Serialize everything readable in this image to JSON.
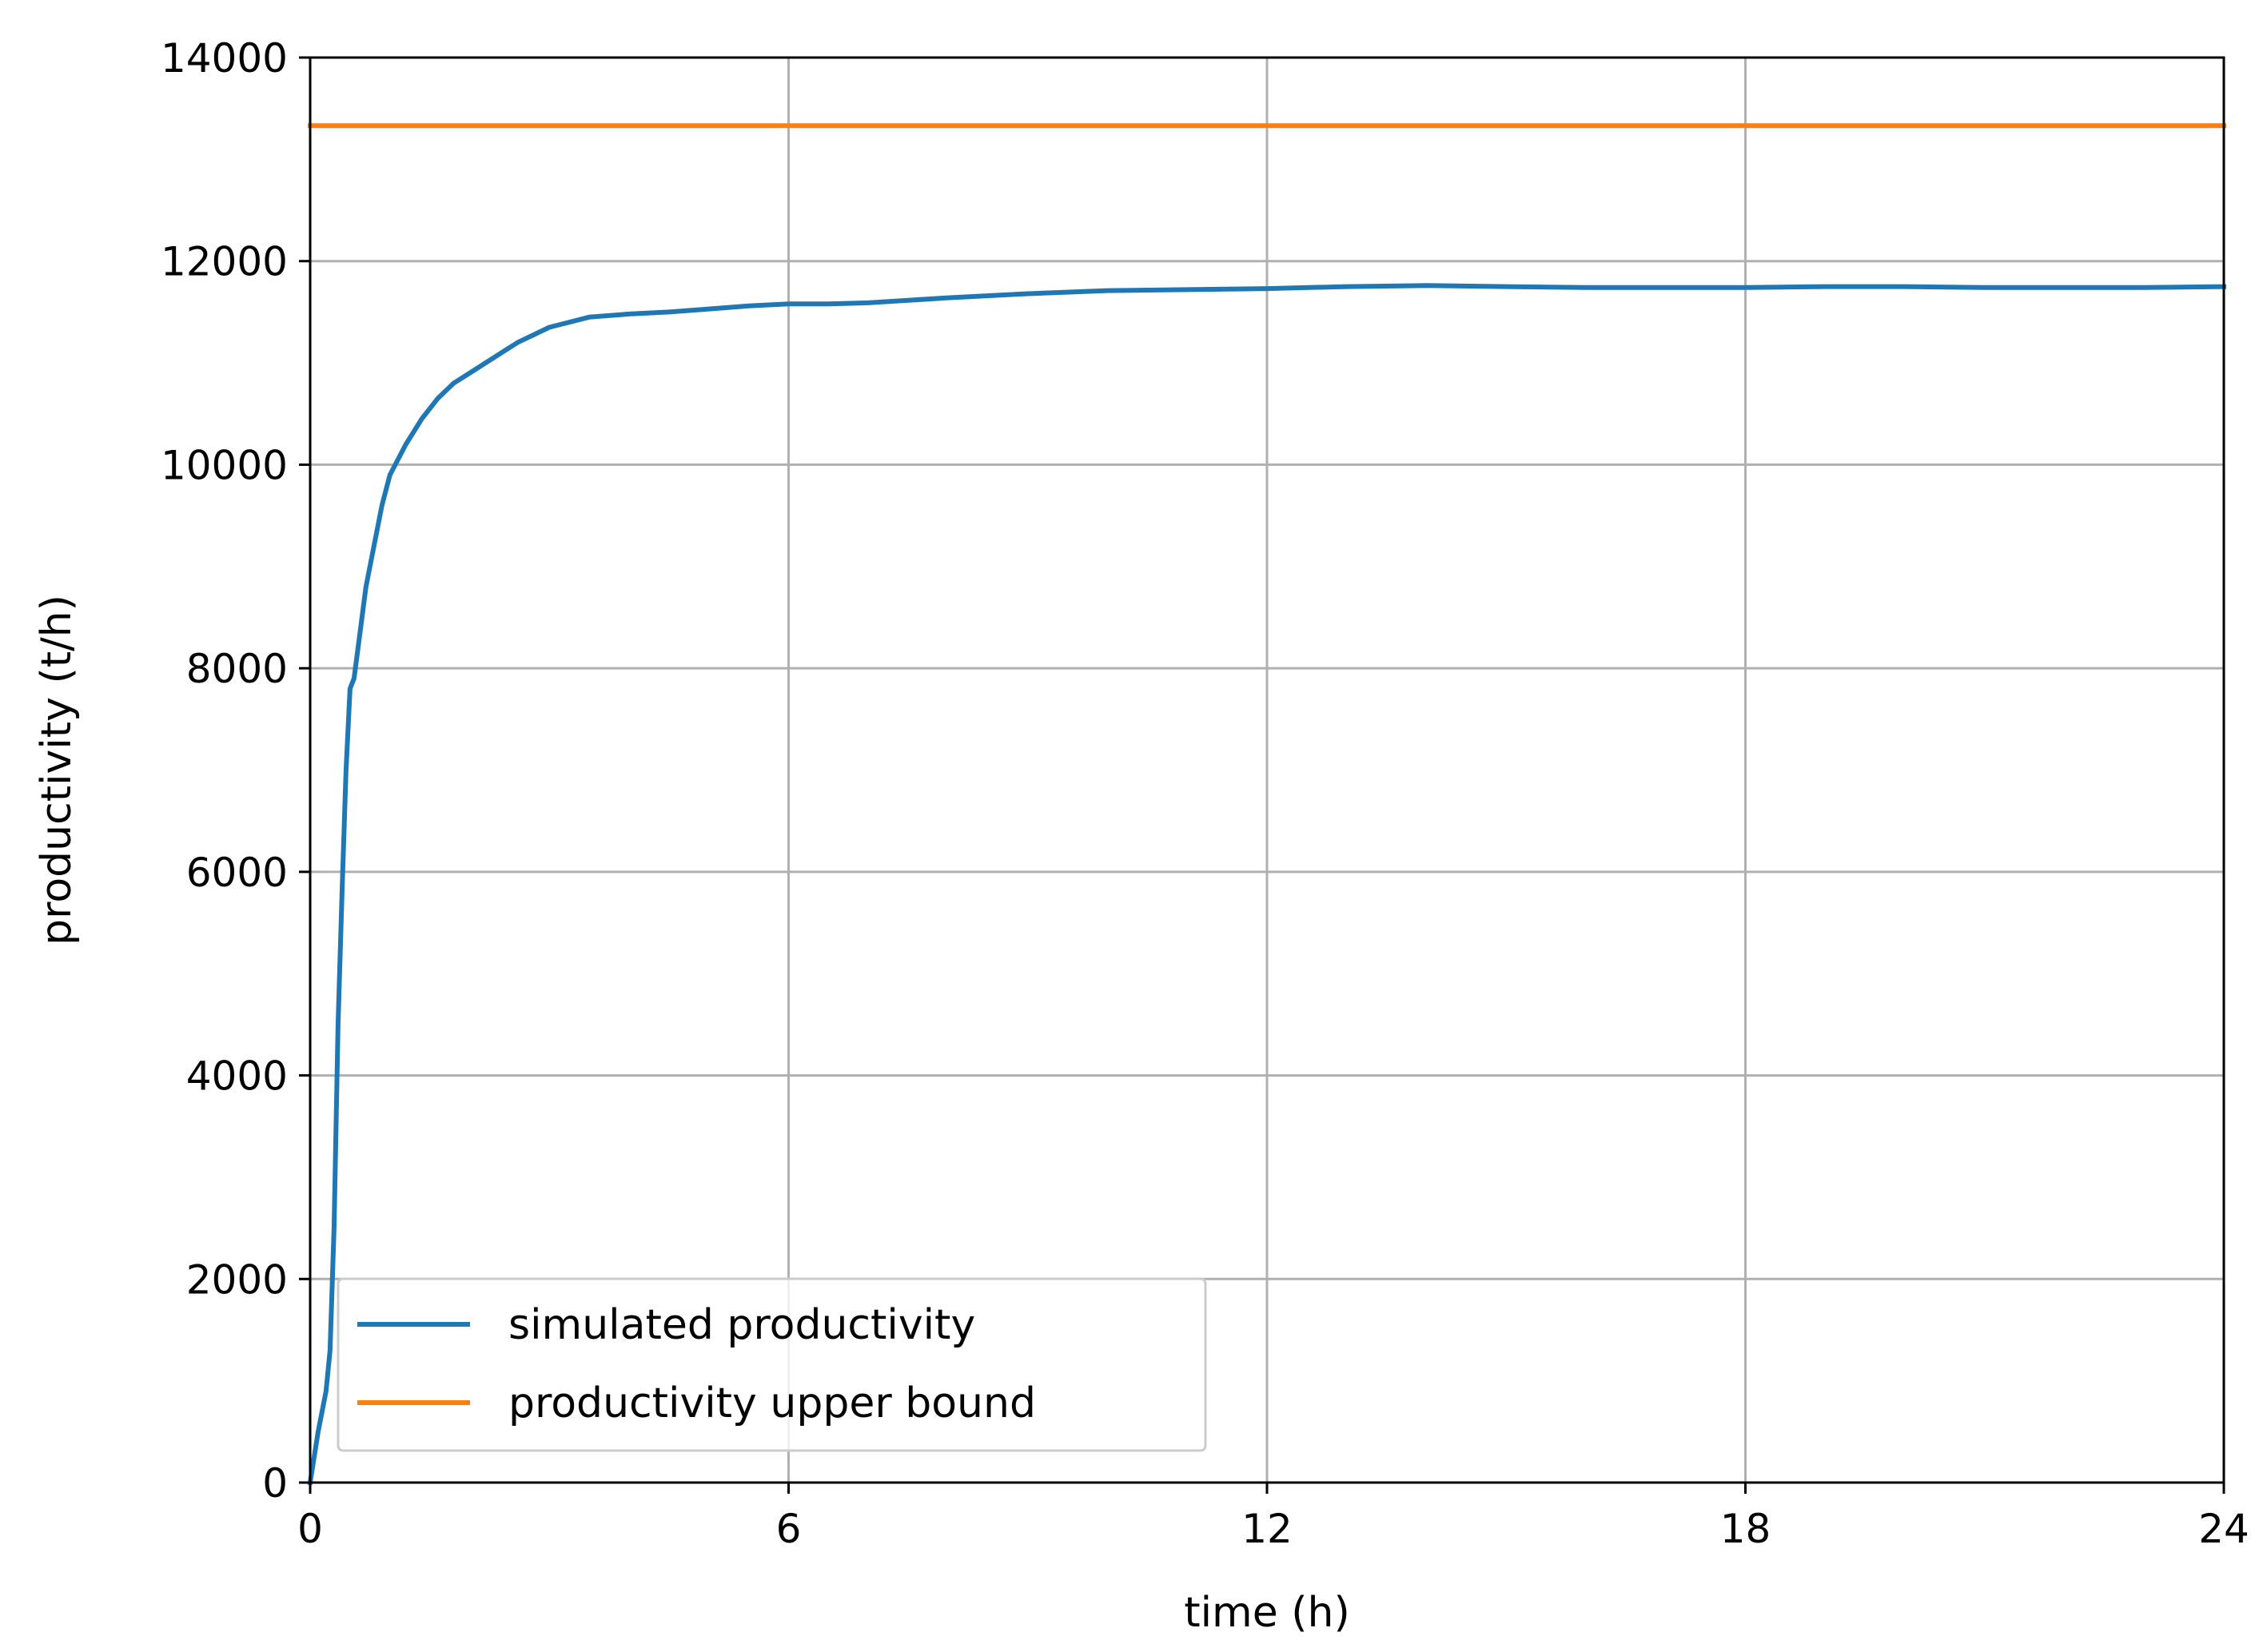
{
  "chart_data": {
    "type": "line",
    "title": "",
    "xlabel": "time (h)",
    "ylabel": "productivity (t/h)",
    "xlim": [
      0,
      24
    ],
    "ylim": [
      0,
      14000
    ],
    "xticks": [
      0,
      6,
      12,
      18,
      24
    ],
    "xtick_labels": [
      "0",
      "6",
      "12",
      "18",
      "24"
    ],
    "yticks": [
      0,
      2000,
      4000,
      6000,
      8000,
      10000,
      12000,
      14000
    ],
    "ytick_labels": [
      "0",
      "2000",
      "4000",
      "6000",
      "8000",
      "10000",
      "12000",
      "14000"
    ],
    "grid": true,
    "legend_position": "lower-left",
    "series": [
      {
        "name": "simulated productivity",
        "color": "#1f77b4",
        "x": [
          0,
          0.1,
          0.2,
          0.25,
          0.3,
          0.35,
          0.4,
          0.45,
          0.5,
          0.55,
          0.6,
          0.7,
          0.8,
          0.9,
          1.0,
          1.2,
          1.4,
          1.6,
          1.8,
          2.0,
          2.3,
          2.6,
          3.0,
          3.5,
          4.0,
          4.5,
          5.0,
          5.5,
          6.0,
          6.5,
          7.0,
          8.0,
          9.0,
          10.0,
          11.0,
          12.0,
          13.0,
          14.0,
          15.0,
          16.0,
          17.0,
          18.0,
          19.0,
          20.0,
          21.0,
          22.0,
          23.0,
          24.0
        ],
        "y": [
          0,
          500,
          900,
          1300,
          2500,
          4500,
          5800,
          7000,
          7800,
          7900,
          8200,
          8800,
          9200,
          9600,
          9900,
          10200,
          10450,
          10650,
          10800,
          10900,
          11050,
          11200,
          11350,
          11450,
          11480,
          11500,
          11530,
          11560,
          11580,
          11580,
          11590,
          11640,
          11680,
          11710,
          11720,
          11730,
          11750,
          11760,
          11750,
          11740,
          11740,
          11740,
          11750,
          11750,
          11740,
          11740,
          11740,
          11750
        ]
      },
      {
        "name": "productivity upper bound",
        "color": "#ff7f0e",
        "x": [
          0,
          24
        ],
        "y": [
          13330,
          13330
        ]
      }
    ]
  }
}
